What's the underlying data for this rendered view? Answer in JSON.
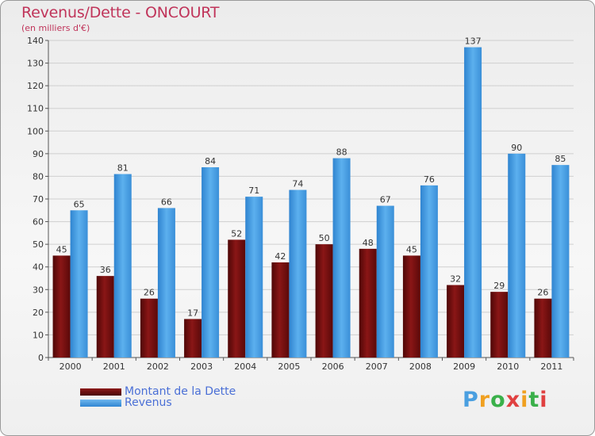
{
  "header": {
    "title": "Revenus/Dette - ONCOURT",
    "subtitle": "(en milliers d'€)"
  },
  "legend": {
    "items": [
      "Montant de la Dette",
      "Revenus"
    ]
  },
  "logo": {
    "text": "Proxiti"
  },
  "colors": {
    "dette": "#6b0e0e",
    "revenus": "#4aa3e8",
    "title": "#c0345a",
    "legend_text": "#4a6fd6"
  },
  "chart_data": {
    "type": "bar",
    "title": "Revenus/Dette - ONCOURT",
    "subtitle": "(en milliers d'€)",
    "categories": [
      "2000",
      "2001",
      "2002",
      "2003",
      "2004",
      "2005",
      "2006",
      "2007",
      "2008",
      "2009",
      "2010",
      "2011"
    ],
    "series": [
      {
        "name": "Montant de la Dette",
        "values": [
          45,
          36,
          26,
          17,
          52,
          42,
          50,
          48,
          45,
          32,
          29,
          26
        ]
      },
      {
        "name": "Revenus",
        "values": [
          65,
          81,
          66,
          84,
          71,
          74,
          88,
          67,
          76,
          137,
          90,
          85
        ]
      }
    ],
    "ylim": [
      0,
      140
    ],
    "yticks": [
      0,
      10,
      20,
      30,
      40,
      50,
      60,
      70,
      80,
      90,
      100,
      110,
      120,
      130,
      140
    ],
    "grid": true,
    "legend_position": "bottom-left"
  }
}
